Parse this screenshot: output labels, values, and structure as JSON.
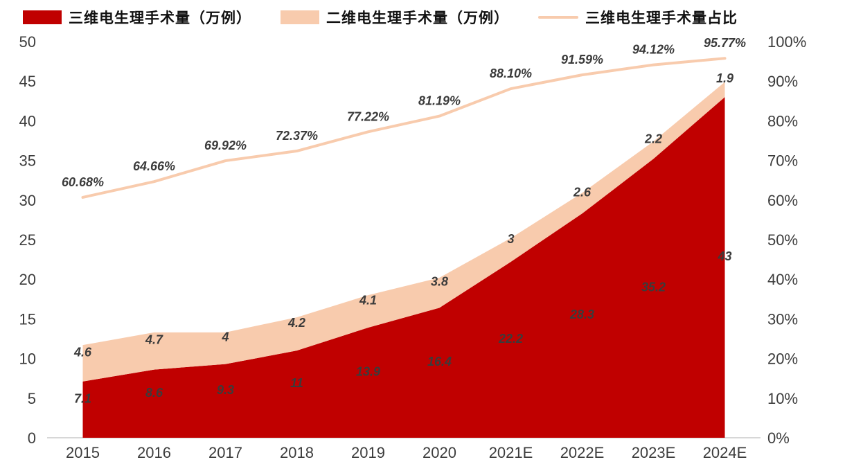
{
  "legend": {
    "items": [
      {
        "label": "三维电生理手术量（万例）",
        "swatch": "rect",
        "color": "#C00000"
      },
      {
        "label": "二维电生理手术量（万例）",
        "swatch": "rect",
        "color": "#F8CBAD"
      },
      {
        "label": "三维电生理手术量占比",
        "swatch": "line",
        "color": "#F8CBAD"
      }
    ]
  },
  "chart_data": {
    "type": "area",
    "stacked": true,
    "title": "",
    "xlabel": "",
    "ylabel": "",
    "categories": [
      "2015",
      "2016",
      "2017",
      "2018",
      "2019",
      "2020",
      "2021E",
      "2022E",
      "2023E",
      "2024E"
    ],
    "series": [
      {
        "name": "三维电生理手术量（万例）",
        "kind": "area",
        "axis": "left",
        "color": "#C00000",
        "values": [
          7.1,
          8.6,
          9.3,
          11,
          13.9,
          16.4,
          22.2,
          28.3,
          35.2,
          43
        ],
        "labels": [
          "7.1",
          "8.6",
          "9.3",
          "11",
          "13.9",
          "16.4",
          "22.2",
          "28.3",
          "35.2",
          "43"
        ]
      },
      {
        "name": "二维电生理手术量（万例）",
        "kind": "area",
        "axis": "left",
        "color": "#F8CBAD",
        "values": [
          4.6,
          4.7,
          4,
          4.2,
          4.1,
          3.8,
          3,
          2.6,
          2.2,
          1.9
        ],
        "labels": [
          "4.6",
          "4.7",
          "4",
          "4.2",
          "4.1",
          "3.8",
          "3",
          "2.6",
          "2.2",
          "1.9"
        ]
      },
      {
        "name": "三维电生理手术量占比",
        "kind": "line",
        "axis": "right",
        "color": "#F8CBAD",
        "values": [
          60.68,
          64.66,
          69.92,
          72.37,
          77.22,
          81.19,
          88.1,
          91.59,
          94.12,
          95.77
        ],
        "labels": [
          "60.68%",
          "64.66%",
          "69.92%",
          "72.37%",
          "77.22%",
          "81.19%",
          "88.10%",
          "91.59%",
          "94.12%",
          "95.77%"
        ]
      }
    ],
    "left_axis": {
      "min": 0,
      "max": 50,
      "step": 5,
      "ticks": [
        "0",
        "5",
        "10",
        "15",
        "20",
        "25",
        "30",
        "35",
        "40",
        "45",
        "50"
      ]
    },
    "right_axis": {
      "min": 0,
      "max": 100,
      "step": 10,
      "ticks": [
        "0%",
        "10%",
        "20%",
        "30%",
        "40%",
        "50%",
        "60%",
        "70%",
        "80%",
        "90%",
        "100%"
      ]
    },
    "grid": false,
    "legend_position": "top",
    "axis_line_color": "#BFBFBF",
    "label_color": "#3B3B3B"
  }
}
